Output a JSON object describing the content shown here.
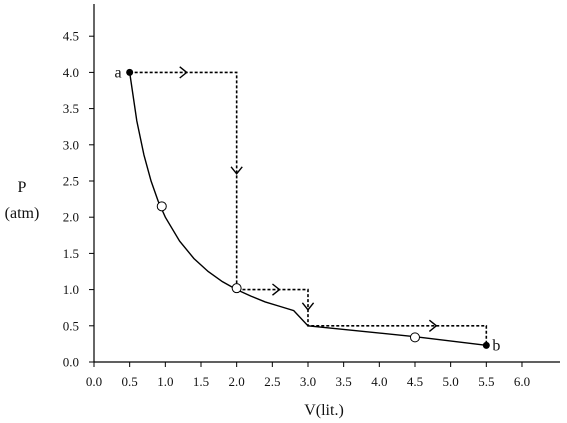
{
  "chart_data": {
    "type": "line",
    "xlabel": "V(lit.)",
    "ylabel_line1": "P",
    "ylabel_line2": "(atm)",
    "xlim": [
      0,
      6.5
    ],
    "ylim": [
      0,
      5
    ],
    "x_ticks": [
      {
        "value": 0.0,
        "label": "0.0"
      },
      {
        "value": 0.5,
        "label": "0.5"
      },
      {
        "value": 1.0,
        "label": "1.0"
      },
      {
        "value": 1.5,
        "label": "1.5"
      },
      {
        "value": 2.0,
        "label": "2.0"
      },
      {
        "value": 2.5,
        "label": "2.5"
      },
      {
        "value": 3.0,
        "label": "3.0"
      },
      {
        "value": 3.5,
        "label": "3.5"
      },
      {
        "value": 4.0,
        "label": "4.0"
      },
      {
        "value": 4.5,
        "label": "4.5"
      },
      {
        "value": 5.0,
        "label": "5.0"
      },
      {
        "value": 5.5,
        "label": "5.5"
      },
      {
        "value": 6.0,
        "label": "6.0"
      }
    ],
    "y_ticks": [
      {
        "value": 0.0,
        "label": "0.0"
      },
      {
        "value": 0.5,
        "label": "0.5"
      },
      {
        "value": 1.0,
        "label": "1.0"
      },
      {
        "value": 1.5,
        "label": "1.5"
      },
      {
        "value": 2.0,
        "label": "2.0"
      },
      {
        "value": 2.5,
        "label": "2.5"
      },
      {
        "value": 3.0,
        "label": "3.0"
      },
      {
        "value": 3.5,
        "label": "3.5"
      },
      {
        "value": 4.0,
        "label": "4.0"
      },
      {
        "value": 4.5,
        "label": "4.5"
      }
    ],
    "solid_curve": [
      [
        0.5,
        4.0
      ],
      [
        0.6,
        3.33
      ],
      [
        0.7,
        2.86
      ],
      [
        0.8,
        2.5
      ],
      [
        0.9,
        2.22
      ],
      [
        1.0,
        2.0
      ],
      [
        1.2,
        1.67
      ],
      [
        1.4,
        1.43
      ],
      [
        1.6,
        1.25
      ],
      [
        1.8,
        1.11
      ],
      [
        2.0,
        1.0
      ],
      [
        2.2,
        0.91
      ],
      [
        2.4,
        0.83
      ],
      [
        2.6,
        0.77
      ],
      [
        2.8,
        0.71
      ],
      [
        3.0,
        0.5
      ],
      [
        4.5,
        0.35
      ],
      [
        5.5,
        0.23
      ]
    ],
    "dashed_path": [
      [
        0.5,
        4.0
      ],
      [
        2.0,
        4.0
      ],
      [
        2.0,
        1.0
      ],
      [
        3.0,
        1.0
      ],
      [
        3.0,
        0.5
      ],
      [
        5.5,
        0.5
      ],
      [
        5.5,
        0.23
      ]
    ],
    "arrows": [
      {
        "x": 1.3,
        "y": 4.0,
        "dir": "right"
      },
      {
        "x": 2.0,
        "y": 2.6,
        "dir": "down"
      },
      {
        "x": 2.6,
        "y": 1.0,
        "dir": "right"
      },
      {
        "x": 3.0,
        "y": 0.72,
        "dir": "down"
      },
      {
        "x": 4.8,
        "y": 0.5,
        "dir": "right"
      }
    ],
    "open_markers": [
      [
        0.95,
        2.15
      ],
      [
        2.0,
        1.02
      ],
      [
        4.5,
        0.34
      ]
    ],
    "points": [
      {
        "label": "a",
        "x": 0.5,
        "y": 4.0,
        "label_side": "left"
      },
      {
        "label": "b",
        "x": 5.5,
        "y": 0.23,
        "label_side": "right"
      }
    ]
  }
}
